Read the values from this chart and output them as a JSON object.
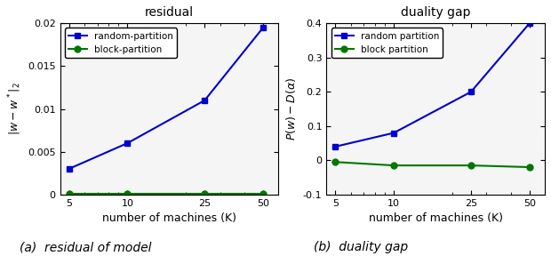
{
  "x": [
    5,
    10,
    25,
    50
  ],
  "residual_random": [
    0.003,
    0.006,
    0.011,
    0.0195
  ],
  "residual_block": [
    0.0001,
    0.0001,
    0.0001,
    0.0001
  ],
  "duality_random": [
    0.04,
    0.08,
    0.2,
    0.4
  ],
  "duality_block": [
    -0.005,
    -0.015,
    -0.015,
    -0.02
  ],
  "color_random": "#0000cc",
  "color_block": "#007700",
  "title_left": "residual",
  "title_right": "duality gap",
  "xlabel": "number of machines (K)",
  "ylim_left": [
    0,
    0.02
  ],
  "ylim_right": [
    -0.1,
    0.4
  ],
  "yticks_left": [
    0,
    0.005,
    0.01,
    0.015,
    0.02
  ],
  "yticks_right": [
    -0.1,
    0.0,
    0.1,
    0.2,
    0.3,
    0.4
  ],
  "xticks": [
    5,
    10,
    25,
    50
  ],
  "caption_left": "(a)  residual of model",
  "caption_right": "(b)  duality gap",
  "legend_random_left": "random-partition",
  "legend_block_left": "block-partition",
  "legend_random_right": "random partition",
  "legend_block_right": "block partition",
  "bg_color": "#f5f5f5"
}
